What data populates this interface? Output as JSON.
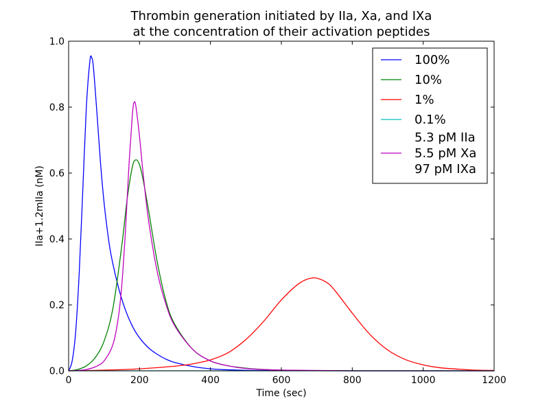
{
  "chart_data": {
    "type": "line",
    "title_lines": [
      "Thrombin generation initiated by IIa, Xa, and IXa",
      "at the concentration of their activation peptides"
    ],
    "xlabel": "Time (sec)",
    "ylabel": "IIa+1.2mIIa (nM)",
    "xlim": [
      0,
      1200
    ],
    "ylim": [
      0,
      1.0
    ],
    "xticks": [
      0,
      200,
      400,
      600,
      800,
      1000,
      1200
    ],
    "xtick_labels": [
      "0",
      "200",
      "400",
      "600",
      "800",
      "1000",
      "1200"
    ],
    "yticks": [
      0.0,
      0.2,
      0.4,
      0.6,
      0.8,
      1.0
    ],
    "ytick_labels": [
      "0.0",
      "0.2",
      "0.4",
      "0.6",
      "0.8",
      "1.0"
    ],
    "grid": false,
    "legend_position": "top-right",
    "series": [
      {
        "name": "100%",
        "color": "#0000ff",
        "x": [
          0,
          10,
          20,
          30,
          40,
          50,
          60,
          65,
          70,
          80,
          90,
          100,
          110,
          120,
          140,
          160,
          180,
          200,
          225,
          250,
          275,
          300,
          350,
          400,
          450,
          500,
          600,
          800,
          1200
        ],
        "y": [
          0,
          0.03,
          0.12,
          0.3,
          0.55,
          0.8,
          0.94,
          0.95,
          0.92,
          0.78,
          0.63,
          0.51,
          0.42,
          0.35,
          0.255,
          0.185,
          0.135,
          0.1,
          0.07,
          0.05,
          0.035,
          0.025,
          0.013,
          0.006,
          0.003,
          0.0015,
          0.0005,
          0,
          0
        ]
      },
      {
        "name": "10%",
        "color": "#008000",
        "x": [
          0,
          25,
          50,
          75,
          100,
          125,
          150,
          165,
          180,
          190,
          200,
          210,
          225,
          250,
          275,
          300,
          350,
          400,
          450,
          500,
          550,
          600,
          700,
          800,
          1200
        ],
        "y": [
          0,
          0.004,
          0.015,
          0.04,
          0.09,
          0.19,
          0.38,
          0.52,
          0.62,
          0.64,
          0.625,
          0.58,
          0.49,
          0.33,
          0.21,
          0.14,
          0.065,
          0.03,
          0.015,
          0.008,
          0.004,
          0.002,
          0.0005,
          0,
          0
        ]
      },
      {
        "name": "1%",
        "color": "#ff0000",
        "x": [
          0,
          100,
          200,
          300,
          350,
          400,
          450,
          500,
          550,
          600,
          650,
          690,
          725,
          750,
          800,
          850,
          900,
          950,
          1000,
          1050,
          1100,
          1150,
          1200
        ],
        "y": [
          0,
          0.002,
          0.006,
          0.014,
          0.021,
          0.033,
          0.055,
          0.095,
          0.15,
          0.215,
          0.265,
          0.282,
          0.27,
          0.245,
          0.175,
          0.11,
          0.063,
          0.034,
          0.018,
          0.009,
          0.005,
          0.002,
          0.001
        ]
      },
      {
        "name": "0.1%",
        "color": "#00bfbf",
        "x": [
          0,
          1200
        ],
        "y": [
          0,
          0
        ]
      },
      {
        "name": "5.3 pM IIa\n5.5 pM Xa\n97 pM IXa",
        "color": "#bf00bf",
        "x": [
          0,
          25,
          50,
          75,
          100,
          125,
          140,
          150,
          160,
          170,
          180,
          185,
          190,
          200,
          210,
          225,
          250,
          275,
          300,
          350,
          400,
          450,
          500,
          600,
          800,
          1200
        ],
        "y": [
          0,
          0.001,
          0.004,
          0.012,
          0.03,
          0.08,
          0.16,
          0.26,
          0.42,
          0.62,
          0.78,
          0.815,
          0.8,
          0.71,
          0.6,
          0.46,
          0.3,
          0.2,
          0.135,
          0.065,
          0.03,
          0.015,
          0.007,
          0.002,
          0,
          0
        ]
      }
    ]
  }
}
